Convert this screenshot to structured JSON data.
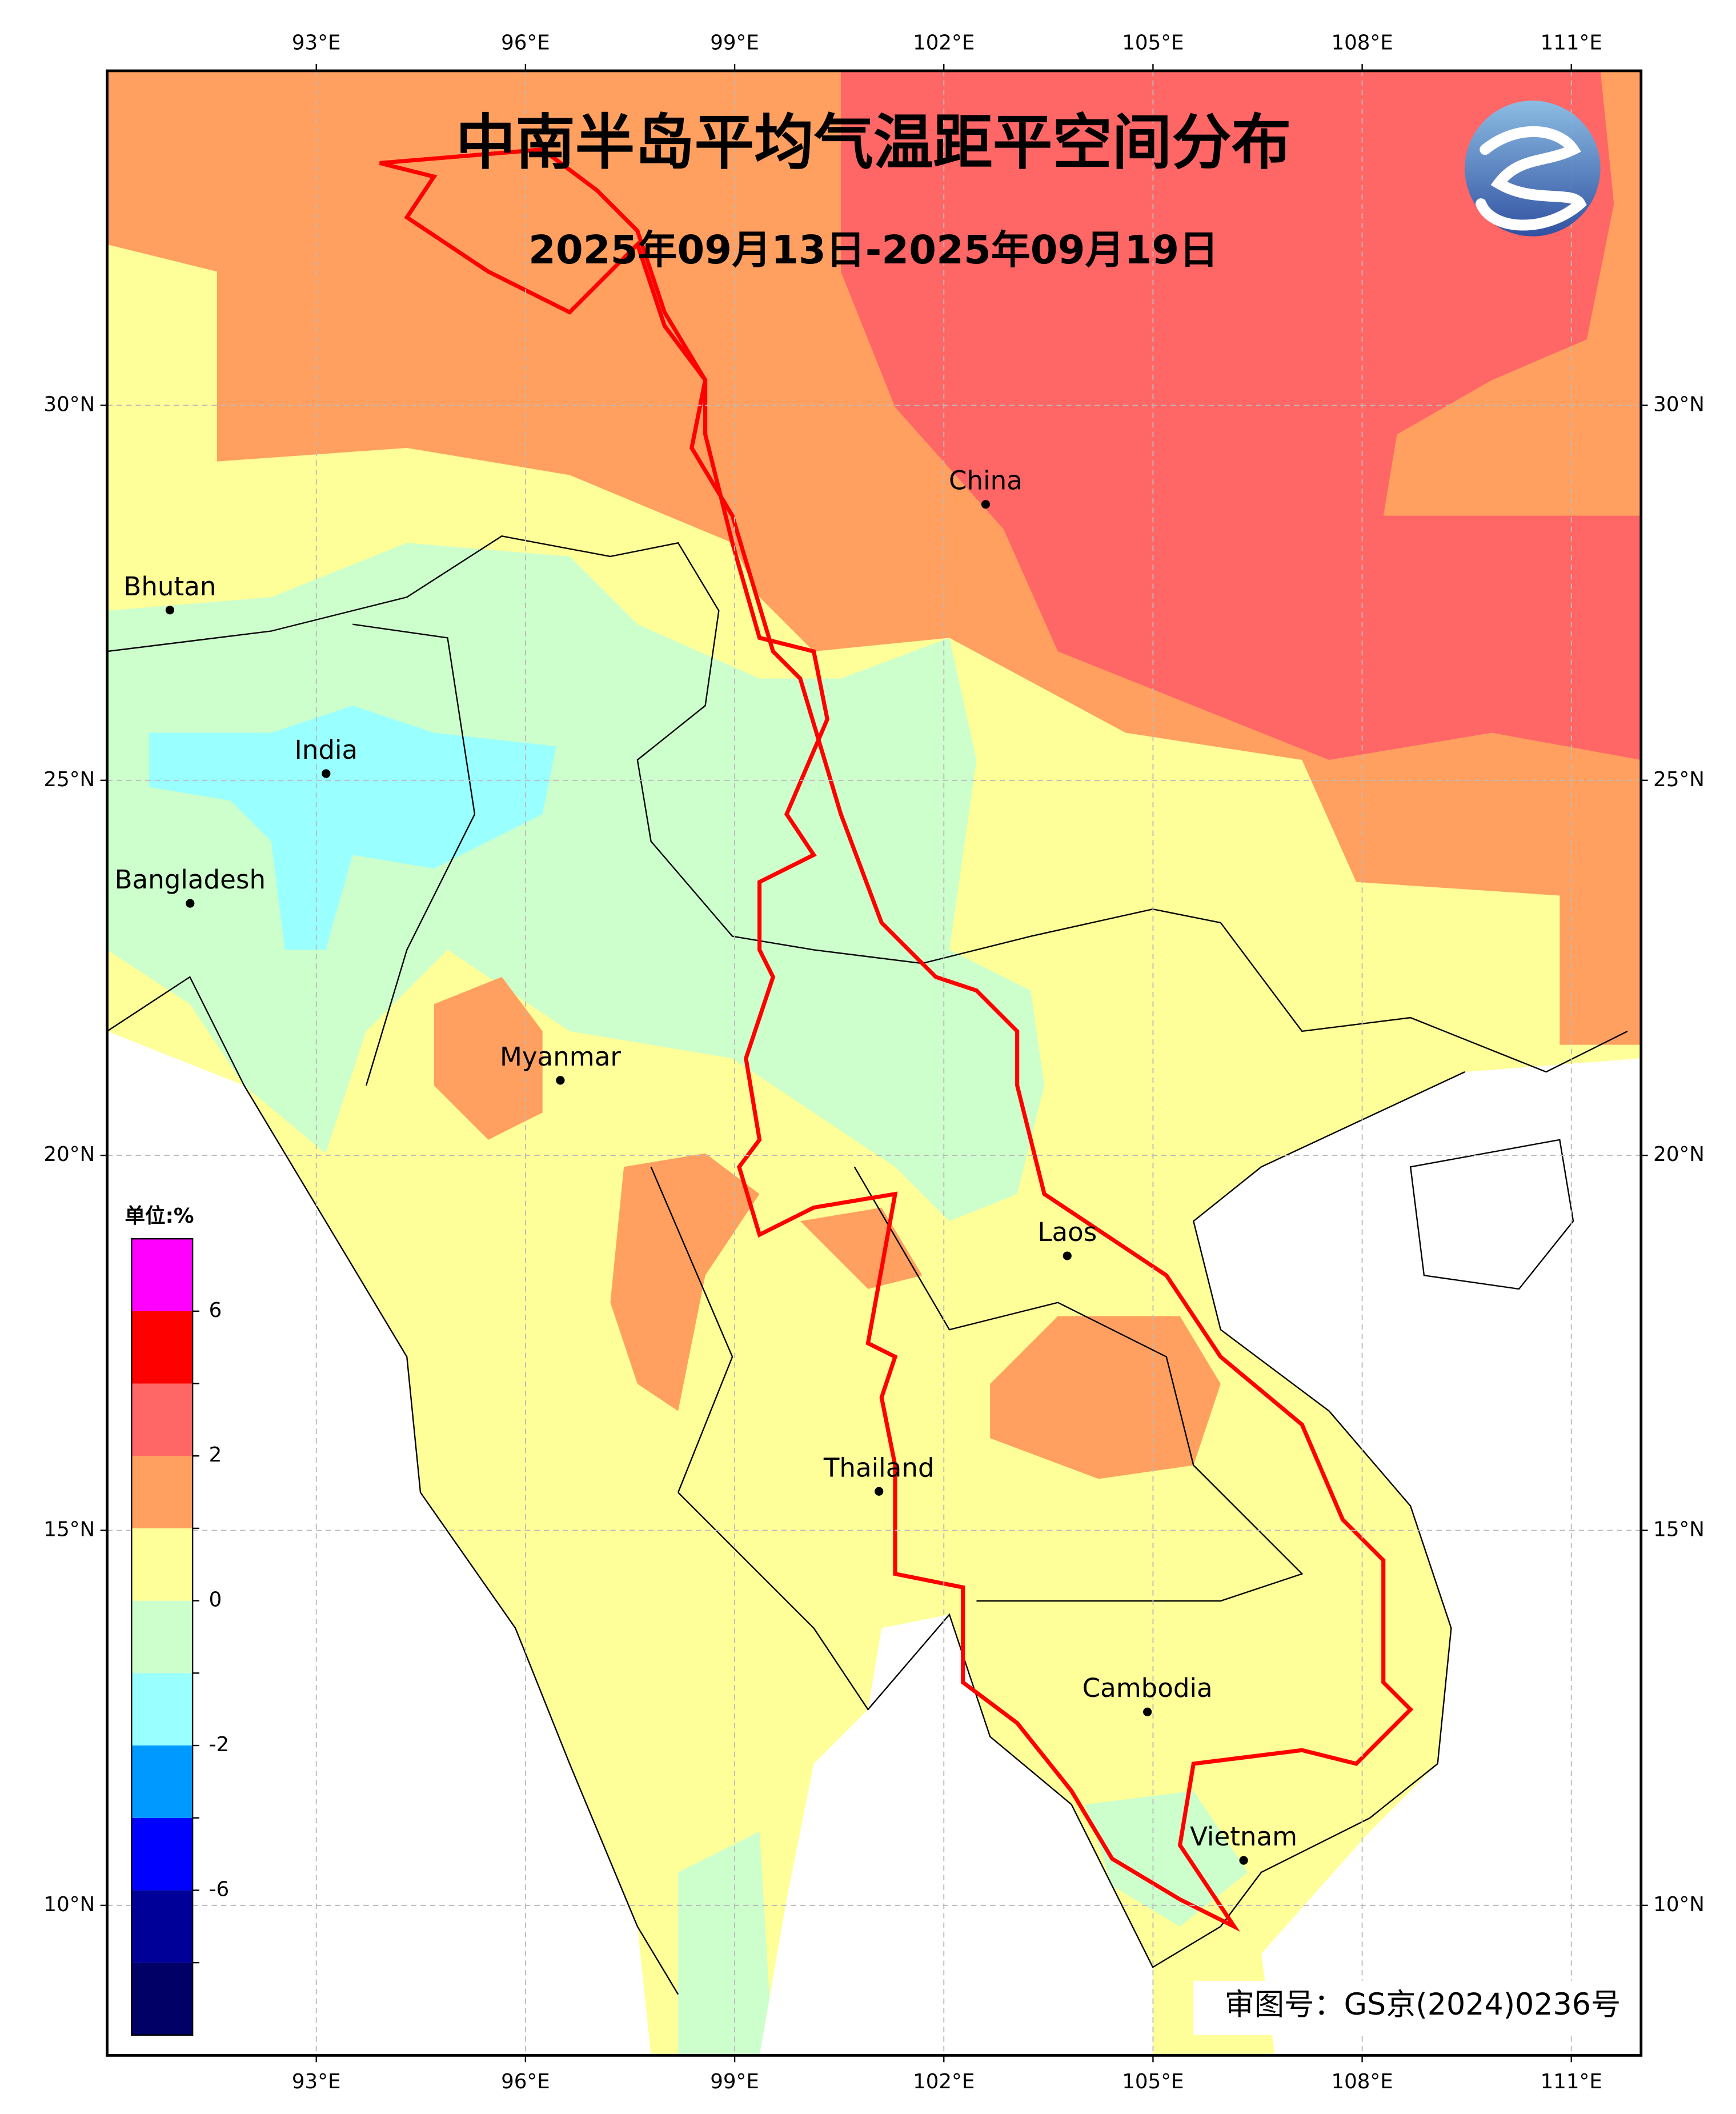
{
  "title": "中南半岛平均气温距平空间分布",
  "subtitle": "2025年09月13日-2025年09月19日",
  "approval": "审图号：GS京(2024)0236号",
  "map": {
    "xlim": [
      90,
      112
    ],
    "ylim": [
      8,
      34.46
    ],
    "xticks": [
      {
        "value": 93,
        "label": "93°E"
      },
      {
        "value": 96,
        "label": "96°E"
      },
      {
        "value": 99,
        "label": "99°E"
      },
      {
        "value": 102,
        "label": "102°E"
      },
      {
        "value": 105,
        "label": "105°E"
      },
      {
        "value": 108,
        "label": "108°E"
      },
      {
        "value": 111,
        "label": "111°E"
      }
    ],
    "yticks": [
      {
        "value": 10,
        "label": "10°N"
      },
      {
        "value": 15,
        "label": "15°N"
      },
      {
        "value": 20,
        "label": "20°N"
      },
      {
        "value": 25,
        "label": "25°N"
      },
      {
        "value": 30,
        "label": "30°N"
      }
    ],
    "grid": true,
    "places": [
      {
        "label": "China",
        "lon": 102.6,
        "lat": 28.68
      },
      {
        "label": "Bhutan",
        "lon": 90.9,
        "lat": 27.27
      },
      {
        "label": "India",
        "lon": 93.14,
        "lat": 25.09
      },
      {
        "label": "Bangladesh",
        "lon": 91.19,
        "lat": 23.36
      },
      {
        "label": "Myanmar",
        "lon": 96.5,
        "lat": 21.0
      },
      {
        "label": "Laos",
        "lon": 103.77,
        "lat": 18.66
      },
      {
        "label": "Thailand",
        "lon": 101.07,
        "lat": 15.52
      },
      {
        "label": "Cambodia",
        "lon": 104.92,
        "lat": 12.58
      },
      {
        "label": "Vietnam",
        "lon": 106.3,
        "lat": 10.6
      }
    ]
  },
  "colorbar": {
    "unit": "单位:%",
    "levels": [
      -8,
      -6,
      -4,
      -2,
      -1,
      0,
      1,
      2,
      4,
      6
    ],
    "colors": [
      "#000066",
      "#000099",
      "#0000ff",
      "#0099ff",
      "#99ffff",
      "#ccffcc",
      "#ffff99",
      "#ffa060",
      "#ff6666",
      "#ff0000",
      "#ff00ff"
    ],
    "ticks": [
      6,
      2,
      0,
      -2,
      -6
    ]
  }
}
